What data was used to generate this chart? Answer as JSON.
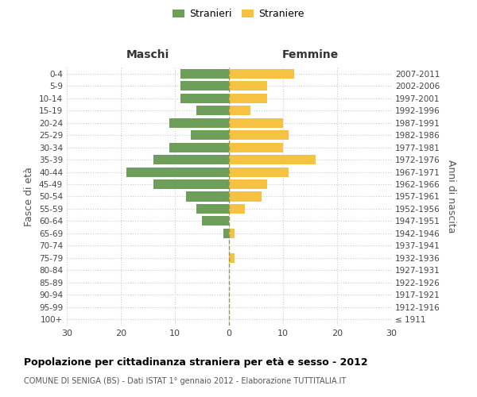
{
  "age_groups": [
    "100+",
    "95-99",
    "90-94",
    "85-89",
    "80-84",
    "75-79",
    "70-74",
    "65-69",
    "60-64",
    "55-59",
    "50-54",
    "45-49",
    "40-44",
    "35-39",
    "30-34",
    "25-29",
    "20-24",
    "15-19",
    "10-14",
    "5-9",
    "0-4"
  ],
  "birth_years": [
    "≤ 1911",
    "1912-1916",
    "1917-1921",
    "1922-1926",
    "1927-1931",
    "1932-1936",
    "1937-1941",
    "1942-1946",
    "1947-1951",
    "1952-1956",
    "1957-1961",
    "1962-1966",
    "1967-1971",
    "1972-1976",
    "1977-1981",
    "1982-1986",
    "1987-1991",
    "1992-1996",
    "1997-2001",
    "2002-2006",
    "2007-2011"
  ],
  "maschi": [
    0,
    0,
    0,
    0,
    0,
    0,
    0,
    1,
    5,
    6,
    8,
    14,
    19,
    14,
    11,
    7,
    11,
    6,
    9,
    9,
    9
  ],
  "femmine": [
    0,
    0,
    0,
    0,
    0,
    1,
    0,
    1,
    0,
    3,
    6,
    7,
    11,
    16,
    10,
    11,
    10,
    4,
    7,
    7,
    12
  ],
  "color_maschi": "#6d9e5a",
  "color_femmine": "#f5c242",
  "title": "Popolazione per cittadinanza straniera per età e sesso - 2012",
  "subtitle": "COMUNE DI SENIGA (BS) - Dati ISTAT 1° gennaio 2012 - Elaborazione TUTTITALIA.IT",
  "xlabel_left": "Maschi",
  "xlabel_right": "Femmine",
  "ylabel_left": "Fasce di età",
  "ylabel_right": "Anni di nascita",
  "legend_maschi": "Stranieri",
  "legend_femmine": "Straniere",
  "xlim": 30,
  "background_color": "#ffffff",
  "grid_color": "#cccccc"
}
